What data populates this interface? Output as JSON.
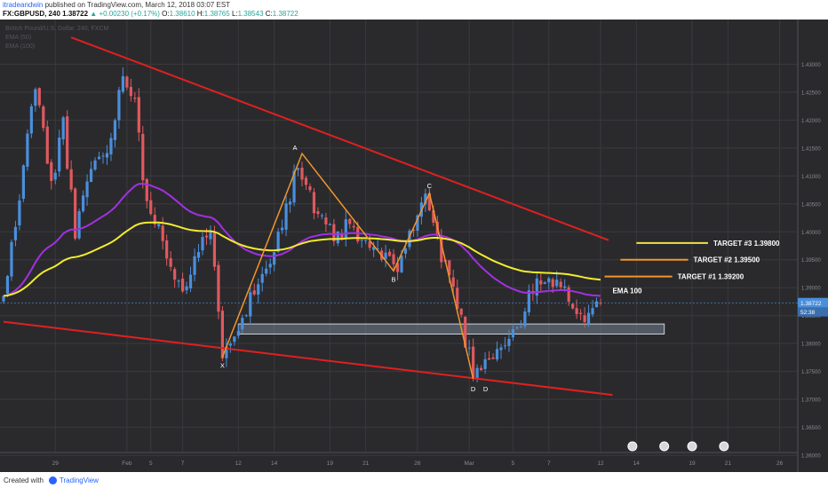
{
  "header": {
    "author": "itradeandwin",
    "published": "published on TradingView.com, March 12, 2018 03:07 EST",
    "symbol": "FX:GBPUSD, 240",
    "last": "1.38722",
    "change": "▲ +0.00230 (+0.17%)",
    "o_label": "O:",
    "o": "1.38610",
    "h_label": "H:",
    "h": "1.38765",
    "l_label": "L:",
    "l": "1.38543",
    "c_label": "C:",
    "c": "1.38722"
  },
  "footer": {
    "created_with": "Created with",
    "brand": "TradingView"
  },
  "legend_lines": [
    "British Pound/U.S. Dollar, 240, FXCM",
    "EMA (50)",
    "EMA (100)"
  ],
  "price_tags": {
    "price": "1.38722",
    "countdown": "52:38"
  },
  "pattern_labels": [
    "X",
    "A",
    "B",
    "C",
    "D",
    "D"
  ],
  "targets": [
    "TARGET #3 1.39800",
    "TARGET #2 1.39500",
    "TARGET #1 1.39200"
  ],
  "ema_label": "EMA 100",
  "colors": {
    "background": "#2a2a2d",
    "up": "#4a8fdc",
    "down": "#e0595e",
    "ema50": "#a230e0",
    "ema100": "#f2ec2e",
    "pattern": "#f0962a",
    "channel": "#e02020",
    "zone": "#9aa8b8",
    "target": "#e8c42a",
    "grid": "#3a3a3e"
  },
  "chart_data": {
    "type": "candlestick",
    "symbol": "GBPUSD",
    "timeframe": "240",
    "y_ticks": [
      "1.43000",
      "1.42500",
      "1.42000",
      "1.41500",
      "1.41000",
      "1.40500",
      "1.40000",
      "1.39500",
      "1.39000",
      "1.38500",
      "1.38000",
      "1.37500",
      "1.37000",
      "1.36500",
      "1.36000"
    ],
    "x_ticks": [
      "29",
      "Feb",
      "5",
      "7",
      "12",
      "14",
      "19",
      "21",
      "26",
      "Mar",
      "5",
      "7",
      "12",
      "14",
      "19",
      "21",
      "26"
    ],
    "ylim": [
      1.357,
      1.438
    ],
    "last_price": 1.38722,
    "pattern": {
      "points": [
        {
          "label": "X",
          "t": 55,
          "price": 1.3776
        },
        {
          "label": "A",
          "t": 75,
          "price": 1.414
        },
        {
          "label": "B",
          "t": 98,
          "price": 1.393
        },
        {
          "label": "C",
          "t": 107,
          "price": 1.4069
        },
        {
          "label": "D",
          "t": 118,
          "price": 1.3737
        }
      ]
    },
    "channel": {
      "upper": [
        {
          "t": 17,
          "price": 1.4348
        },
        {
          "t": 152,
          "price": 1.3985
        }
      ],
      "lower": [
        {
          "t": 0,
          "price": 1.3839
        },
        {
          "t": 153,
          "price": 1.3708
        }
      ]
    },
    "support_zone": {
      "t_start": 59,
      "t_end": 166,
      "price_top": 1.3835,
      "price_bottom": 1.3817
    },
    "targets": [
      {
        "label": "TARGET #3 1.39800",
        "price": 1.398
      },
      {
        "label": "TARGET #2 1.39500",
        "price": 1.395
      },
      {
        "label": "TARGET #1 1.39200",
        "price": 1.392
      }
    ],
    "ema_label_price": 1.3895,
    "anchors": [
      {
        "t": 0,
        "price": 1.388
      },
      {
        "t": 4,
        "price": 1.406
      },
      {
        "t": 8,
        "price": 1.427
      },
      {
        "t": 12,
        "price": 1.408
      },
      {
        "t": 15,
        "price": 1.42
      },
      {
        "t": 18,
        "price": 1.399
      },
      {
        "t": 22,
        "price": 1.412
      },
      {
        "t": 26,
        "price": 1.414
      },
      {
        "t": 30,
        "price": 1.428
      },
      {
        "t": 33,
        "price": 1.425
      },
      {
        "t": 35,
        "price": 1.408
      },
      {
        "t": 38,
        "price": 1.403
      },
      {
        "t": 41,
        "price": 1.396
      },
      {
        "t": 45,
        "price": 1.39
      },
      {
        "t": 49,
        "price": 1.397
      },
      {
        "t": 52,
        "price": 1.399
      },
      {
        "t": 55,
        "price": 1.379
      },
      {
        "t": 60,
        "price": 1.385
      },
      {
        "t": 65,
        "price": 1.392
      },
      {
        "t": 70,
        "price": 1.402
      },
      {
        "t": 74,
        "price": 1.412
      },
      {
        "t": 79,
        "price": 1.402
      },
      {
        "t": 83,
        "price": 1.399
      },
      {
        "t": 87,
        "price": 1.401
      },
      {
        "t": 90,
        "price": 1.398
      },
      {
        "t": 95,
        "price": 1.396
      },
      {
        "t": 98,
        "price": 1.393
      },
      {
        "t": 102,
        "price": 1.399
      },
      {
        "t": 106,
        "price": 1.407
      },
      {
        "t": 109,
        "price": 1.398
      },
      {
        "t": 113,
        "price": 1.39
      },
      {
        "t": 118,
        "price": 1.375
      },
      {
        "t": 122,
        "price": 1.378
      },
      {
        "t": 126,
        "price": 1.38
      },
      {
        "t": 130,
        "price": 1.384
      },
      {
        "t": 133,
        "price": 1.39
      },
      {
        "t": 137,
        "price": 1.391
      },
      {
        "t": 140,
        "price": 1.39
      },
      {
        "t": 142,
        "price": 1.389
      },
      {
        "t": 145,
        "price": 1.384
      },
      {
        "t": 147,
        "price": 1.385
      },
      {
        "t": 150,
        "price": 1.3872
      }
    ]
  }
}
